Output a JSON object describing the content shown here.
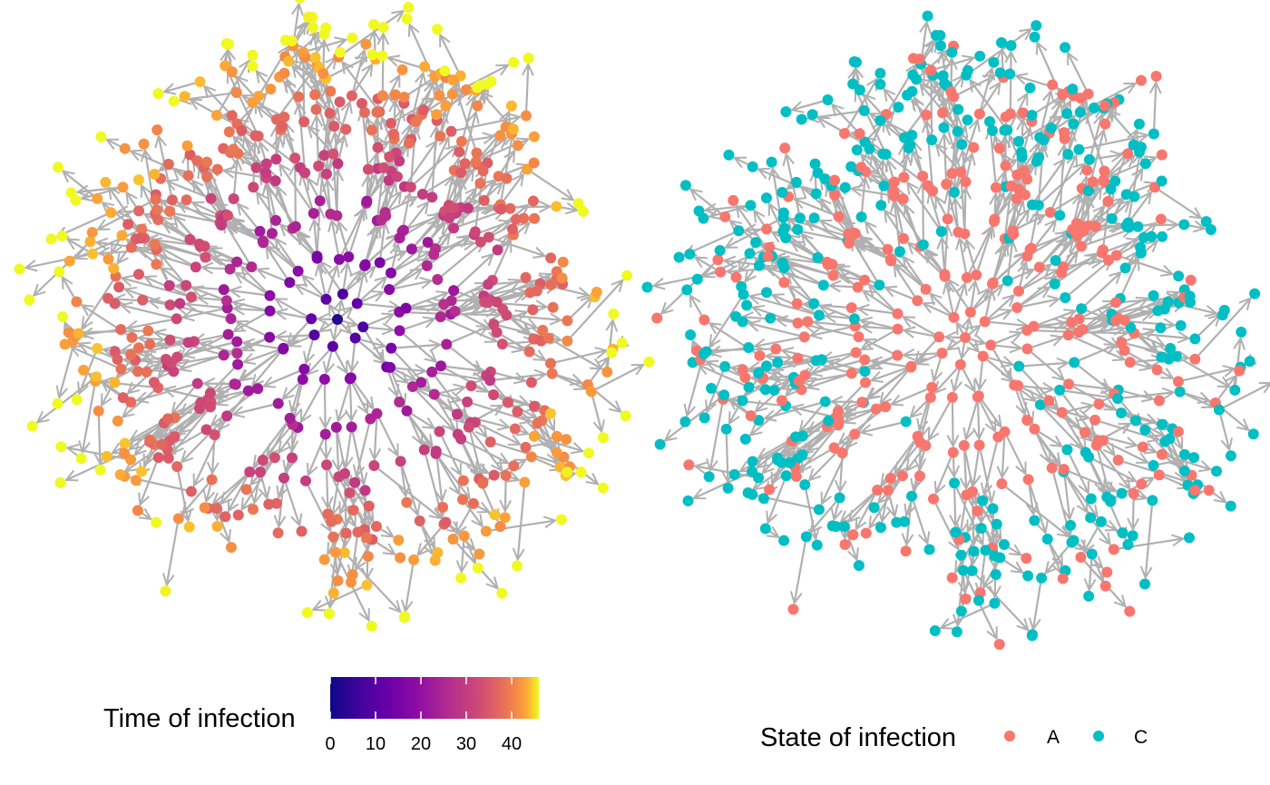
{
  "legend_time": {
    "title": "Time of infection",
    "ticks": [
      "0",
      "10",
      "20",
      "30",
      "40"
    ],
    "tick_values": [
      0,
      10,
      20,
      30,
      40
    ],
    "range": [
      0,
      46
    ],
    "palette": "plasma"
  },
  "legend_state": {
    "title": "State of infection",
    "keys": [
      {
        "label": "A",
        "color": "#F8766D"
      },
      {
        "label": "C",
        "color": "#00BFC4"
      }
    ]
  },
  "colors": {
    "edge": "#b0b0b0",
    "state_A": "#F8766D",
    "state_C": "#00BFC4"
  }
}
